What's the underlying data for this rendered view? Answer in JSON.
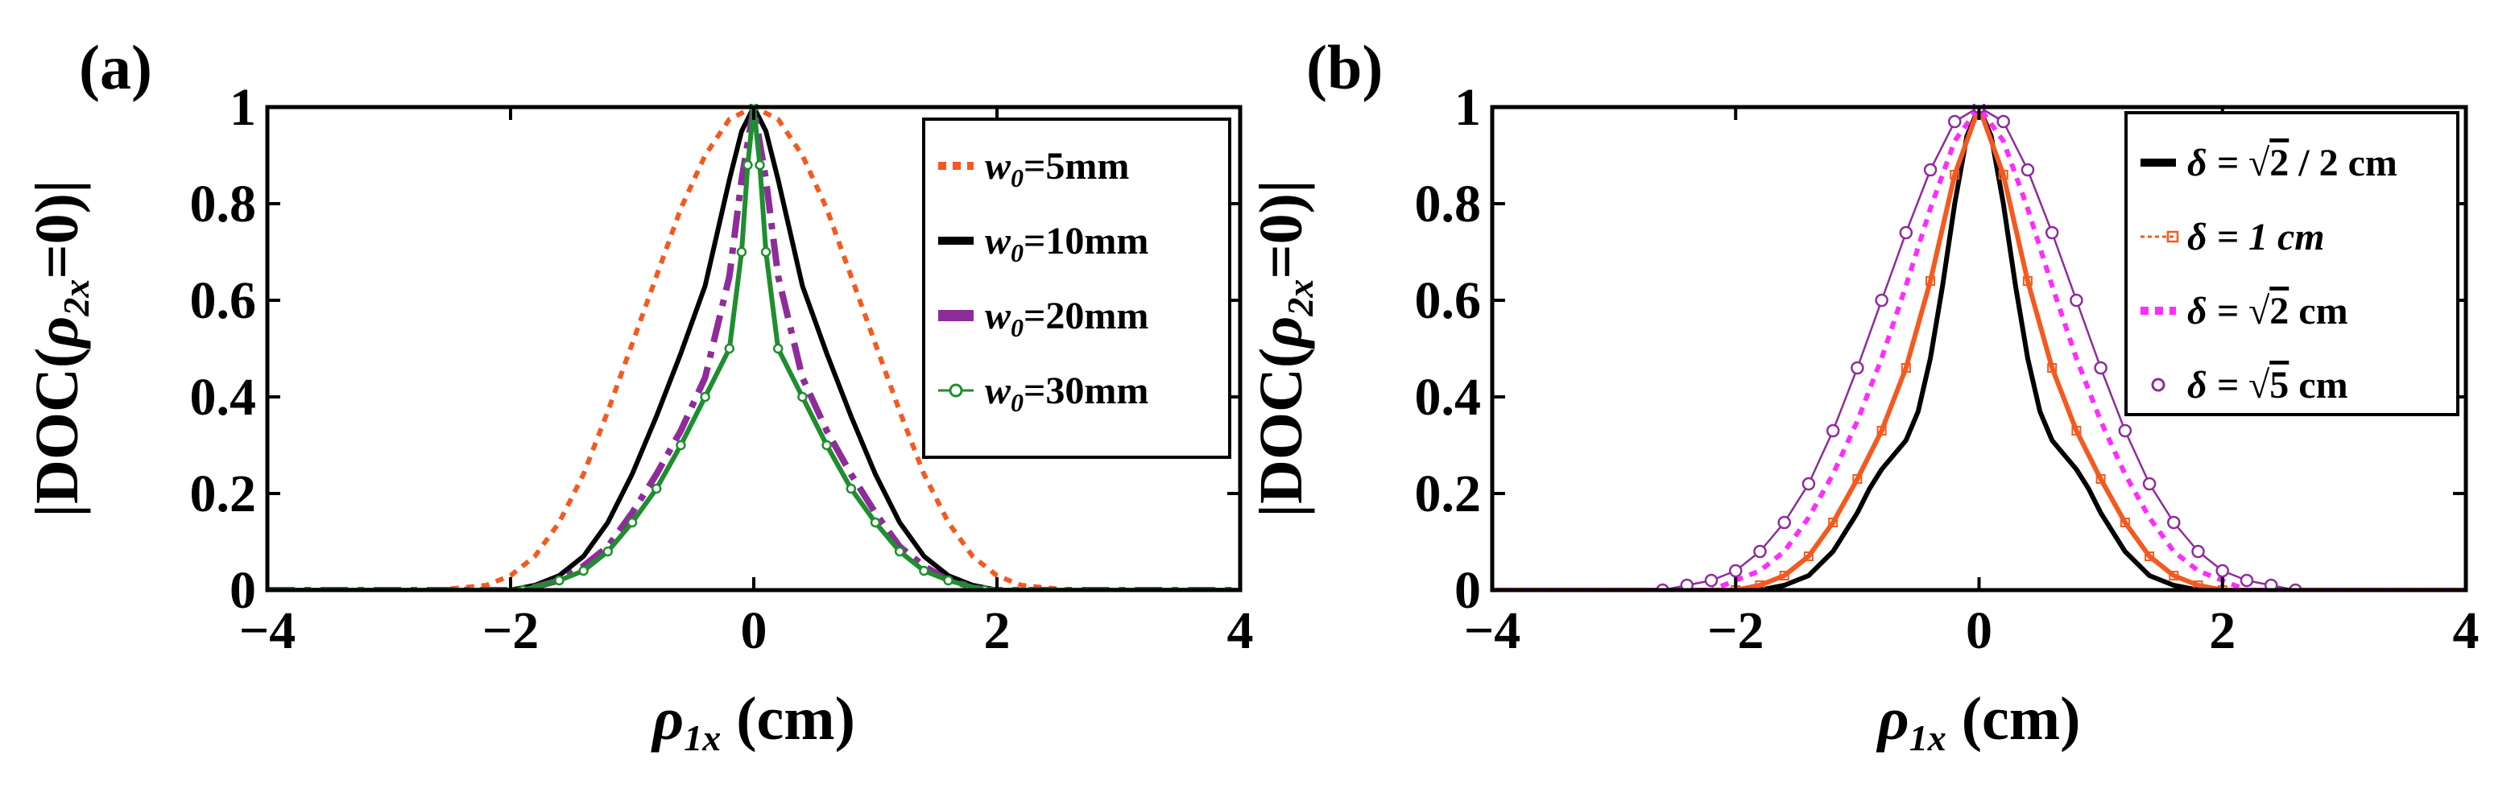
{
  "chart_data": [
    {
      "type": "line",
      "panel": "(a)",
      "xlabel": {
        "sym": "ρ",
        "sub": "1x",
        "unit": "(cm)"
      },
      "ylabel": {
        "pre": "|DOC(",
        "sym": "ρ",
        "sub": "2x",
        "post": "=0)|"
      },
      "xlim": [
        -4,
        4
      ],
      "ylim": [
        0,
        1
      ],
      "xticks": [
        "−4",
        "−2",
        "0",
        "2",
        "4"
      ],
      "yticks": [
        "0",
        "0.2",
        "0.4",
        "0.6",
        "0.8",
        "1"
      ],
      "grid": false,
      "legend_position": "top-right",
      "series": [
        {
          "name": "w0=5mm",
          "legend": {
            "sym": "w",
            "sub": "0",
            "rest": "=5mm"
          },
          "color": "#F4591F",
          "style": "dotted",
          "x": [
            -2.6,
            -2.2,
            -2.0,
            -1.8,
            -1.6,
            -1.4,
            -1.2,
            -1.0,
            -0.8,
            -0.6,
            -0.4,
            -0.2,
            0.0,
            0.2,
            0.4,
            0.6,
            0.8,
            1.0,
            1.2,
            1.4,
            1.6,
            1.8,
            2.0,
            2.2,
            2.6
          ],
          "y": [
            0.0,
            0.01,
            0.03,
            0.07,
            0.14,
            0.24,
            0.37,
            0.51,
            0.65,
            0.79,
            0.9,
            0.975,
            1.0,
            0.975,
            0.9,
            0.79,
            0.65,
            0.51,
            0.37,
            0.24,
            0.14,
            0.07,
            0.03,
            0.01,
            0.0
          ]
        },
        {
          "name": "w0=10mm",
          "legend": {
            "sym": "w",
            "sub": "0",
            "rest": "=10mm"
          },
          "color": "#000000",
          "style": "solid",
          "x": [
            -2.0,
            -1.8,
            -1.6,
            -1.4,
            -1.2,
            -1.0,
            -0.8,
            -0.6,
            -0.4,
            -0.2,
            -0.1,
            0.0,
            0.1,
            0.2,
            0.4,
            0.6,
            0.8,
            1.0,
            1.2,
            1.4,
            1.6,
            1.8,
            2.0
          ],
          "y": [
            0.0,
            0.01,
            0.03,
            0.07,
            0.14,
            0.24,
            0.36,
            0.49,
            0.63,
            0.85,
            0.95,
            1.0,
            0.95,
            0.85,
            0.63,
            0.49,
            0.36,
            0.24,
            0.14,
            0.07,
            0.03,
            0.01,
            0.0
          ]
        },
        {
          "name": "w0=20mm",
          "legend": {
            "sym": "w",
            "sub": "0",
            "rest": "=20mm"
          },
          "color": "#8E2C9A",
          "style": "dashdot",
          "x": [
            -1.9,
            -1.6,
            -1.4,
            -1.2,
            -1.0,
            -0.8,
            -0.6,
            -0.4,
            -0.2,
            -0.1,
            0.0,
            0.1,
            0.2,
            0.4,
            0.6,
            0.8,
            1.0,
            1.2,
            1.4,
            1.6,
            1.9
          ],
          "y": [
            0.0,
            0.02,
            0.05,
            0.09,
            0.16,
            0.24,
            0.33,
            0.44,
            0.65,
            0.85,
            1.0,
            0.85,
            0.65,
            0.44,
            0.33,
            0.24,
            0.16,
            0.09,
            0.05,
            0.02,
            0.0
          ]
        },
        {
          "name": "w0=30mm",
          "legend": {
            "sym": "w",
            "sub": "0",
            "rest": "=30mm"
          },
          "color": "#1E8E2E",
          "style": "solid-marker",
          "x": [
            -1.9,
            -1.6,
            -1.4,
            -1.2,
            -1.0,
            -0.8,
            -0.6,
            -0.4,
            -0.2,
            -0.1,
            -0.05,
            0.0,
            0.05,
            0.1,
            0.2,
            0.4,
            0.6,
            0.8,
            1.0,
            1.2,
            1.4,
            1.6,
            1.9
          ],
          "y": [
            0.0,
            0.02,
            0.04,
            0.08,
            0.14,
            0.21,
            0.3,
            0.4,
            0.5,
            0.7,
            0.88,
            1.0,
            0.88,
            0.7,
            0.5,
            0.4,
            0.3,
            0.21,
            0.14,
            0.08,
            0.04,
            0.02,
            0.0
          ]
        }
      ]
    },
    {
      "type": "line",
      "panel": "(b)",
      "xlabel": {
        "sym": "ρ",
        "sub": "1x",
        "unit": "(cm)"
      },
      "ylabel": {
        "pre": "|DOC(",
        "sym": "ρ",
        "sub": "2x",
        "post": "=0)|"
      },
      "xlim": [
        -4,
        4
      ],
      "ylim": [
        0,
        1
      ],
      "xticks": [
        "−4",
        "−2",
        "0",
        "2",
        "4"
      ],
      "yticks": [
        "0",
        "0.2",
        "0.4",
        "0.6",
        "0.8",
        "1"
      ],
      "grid": false,
      "legend_position": "top-right",
      "series": [
        {
          "name": "δ = √2 / 2 cm",
          "legend": {
            "pre": "δ = ",
            "rad": "2",
            "post": " / 2 cm"
          },
          "color": "#000000",
          "style": "solid",
          "x": [
            -1.8,
            -1.6,
            -1.4,
            -1.2,
            -1.0,
            -0.9,
            -0.8,
            -0.7,
            -0.6,
            -0.5,
            -0.4,
            -0.3,
            -0.2,
            -0.1,
            0.0,
            0.1,
            0.2,
            0.3,
            0.4,
            0.5,
            0.6,
            0.7,
            0.8,
            0.9,
            1.0,
            1.2,
            1.4,
            1.6,
            1.8
          ],
          "y": [
            0.0,
            0.01,
            0.03,
            0.08,
            0.16,
            0.21,
            0.25,
            0.28,
            0.31,
            0.37,
            0.48,
            0.63,
            0.8,
            0.94,
            1.0,
            0.94,
            0.8,
            0.63,
            0.48,
            0.37,
            0.31,
            0.28,
            0.25,
            0.21,
            0.16,
            0.08,
            0.03,
            0.01,
            0.0
          ]
        },
        {
          "name": "δ = 1 cm",
          "legend": {
            "pre": "δ = 1 cm"
          },
          "color": "#F4591F",
          "style": "solid-square",
          "x": [
            -2.0,
            -1.8,
            -1.6,
            -1.4,
            -1.2,
            -1.0,
            -0.8,
            -0.6,
            -0.4,
            -0.2,
            0.0,
            0.2,
            0.4,
            0.6,
            0.8,
            1.0,
            1.2,
            1.4,
            1.6,
            1.8,
            2.0
          ],
          "y": [
            0.0,
            0.01,
            0.03,
            0.07,
            0.14,
            0.23,
            0.33,
            0.46,
            0.64,
            0.86,
            1.0,
            0.86,
            0.64,
            0.46,
            0.33,
            0.23,
            0.14,
            0.07,
            0.03,
            0.01,
            0.0
          ]
        },
        {
          "name": "δ = √2 cm",
          "legend": {
            "pre": "δ = ",
            "rad": "2",
            "post": " cm"
          },
          "color": "#FF2BFF",
          "style": "dotted",
          "x": [
            -2.2,
            -2.0,
            -1.8,
            -1.6,
            -1.4,
            -1.2,
            -1.0,
            -0.8,
            -0.6,
            -0.4,
            -0.2,
            0.0,
            0.2,
            0.4,
            0.6,
            0.8,
            1.0,
            1.2,
            1.4,
            1.6,
            1.8,
            2.0,
            2.2
          ],
          "y": [
            0.0,
            0.02,
            0.04,
            0.08,
            0.15,
            0.24,
            0.35,
            0.48,
            0.63,
            0.79,
            0.93,
            1.0,
            0.93,
            0.79,
            0.63,
            0.48,
            0.35,
            0.24,
            0.15,
            0.08,
            0.04,
            0.02,
            0.0
          ]
        },
        {
          "name": "δ = √5 cm",
          "legend": {
            "pre": "δ = ",
            "rad": "5",
            "post": " cm"
          },
          "color": "#8E2C9A",
          "style": "circle-marker",
          "x": [
            -2.6,
            -2.4,
            -2.2,
            -2.0,
            -1.8,
            -1.6,
            -1.4,
            -1.2,
            -1.0,
            -0.8,
            -0.6,
            -0.4,
            -0.2,
            0.0,
            0.2,
            0.4,
            0.6,
            0.8,
            1.0,
            1.2,
            1.4,
            1.6,
            1.8,
            2.0,
            2.2,
            2.4,
            2.6
          ],
          "y": [
            0.0,
            0.01,
            0.02,
            0.04,
            0.08,
            0.14,
            0.22,
            0.33,
            0.46,
            0.6,
            0.74,
            0.87,
            0.97,
            1.0,
            0.97,
            0.87,
            0.74,
            0.6,
            0.46,
            0.33,
            0.22,
            0.14,
            0.08,
            0.04,
            0.02,
            0.01,
            0.0
          ]
        }
      ]
    }
  ]
}
